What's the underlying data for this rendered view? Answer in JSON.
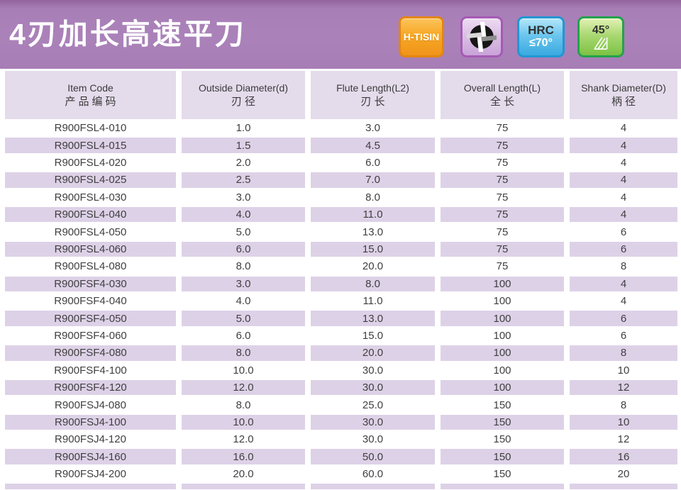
{
  "title": "4刃加长高速平刀",
  "badges": {
    "coating_label": "H-TISIN",
    "flute_icon": "four-flute-cross-section",
    "hardness_line1": "HRC",
    "hardness_line2": "≤70°",
    "helix_angle_label": "45°"
  },
  "table": {
    "columns": [
      {
        "en": "Item Code",
        "zh": "产品编码"
      },
      {
        "en": "Outside Diameter(d)",
        "zh": "刃径"
      },
      {
        "en": "Flute Length(L2)",
        "zh": "刃长"
      },
      {
        "en": "Overall Length(L)",
        "zh": "全长"
      },
      {
        "en": "Shank Diameter(D)",
        "zh": "柄径"
      }
    ],
    "rows": [
      [
        "R900FSL4-010",
        "1.0",
        "3.0",
        "75",
        "4"
      ],
      [
        "R900FSL4-015",
        "1.5",
        "4.5",
        "75",
        "4"
      ],
      [
        "R900FSL4-020",
        "2.0",
        "6.0",
        "75",
        "4"
      ],
      [
        "R900FSL4-025",
        "2.5",
        "7.0",
        "75",
        "4"
      ],
      [
        "R900FSL4-030",
        "3.0",
        "8.0",
        "75",
        "4"
      ],
      [
        "R900FSL4-040",
        "4.0",
        "11.0",
        "75",
        "4"
      ],
      [
        "R900FSL4-050",
        "5.0",
        "13.0",
        "75",
        "6"
      ],
      [
        "R900FSL4-060",
        "6.0",
        "15.0",
        "75",
        "6"
      ],
      [
        "R900FSL4-080",
        "8.0",
        "20.0",
        "75",
        "8"
      ],
      [
        "R900FSF4-030",
        "3.0",
        "8.0",
        "100",
        "4"
      ],
      [
        "R900FSF4-040",
        "4.0",
        "11.0",
        "100",
        "4"
      ],
      [
        "R900FSF4-050",
        "5.0",
        "13.0",
        "100",
        "6"
      ],
      [
        "R900FSF4-060",
        "6.0",
        "15.0",
        "100",
        "6"
      ],
      [
        "R900FSF4-080",
        "8.0",
        "20.0",
        "100",
        "8"
      ],
      [
        "R900FSF4-100",
        "10.0",
        "30.0",
        "100",
        "10"
      ],
      [
        "R900FSF4-120",
        "12.0",
        "30.0",
        "100",
        "12"
      ],
      [
        "R900FSJ4-080",
        "8.0",
        "25.0",
        "150",
        "8"
      ],
      [
        "R900FSJ4-100",
        "10.0",
        "30.0",
        "150",
        "10"
      ],
      [
        "R900FSJ4-120",
        "12.0",
        "30.0",
        "150",
        "12"
      ],
      [
        "R900FSJ4-160",
        "16.0",
        "50.0",
        "150",
        "16"
      ],
      [
        "R900FSJ4-200",
        "20.0",
        "60.0",
        "150",
        "20"
      ]
    ]
  },
  "colors": {
    "title_band_purple": "#a87eb6",
    "title_band_top_dark": "#92639c",
    "header_cell_lavender": "#e4dbeb",
    "row_stripe_lavender": "#ddd1e7",
    "table_text": "#3f3f3f",
    "badge_orange": "#f7a825",
    "badge_orange_border": "#e3860f",
    "badge_purple_border": "#a55ab4",
    "badge_blue": "#3aa9e0",
    "badge_blue_border": "#2196d3",
    "badge_green": "#7cc244",
    "badge_green_border": "#23a24c"
  }
}
